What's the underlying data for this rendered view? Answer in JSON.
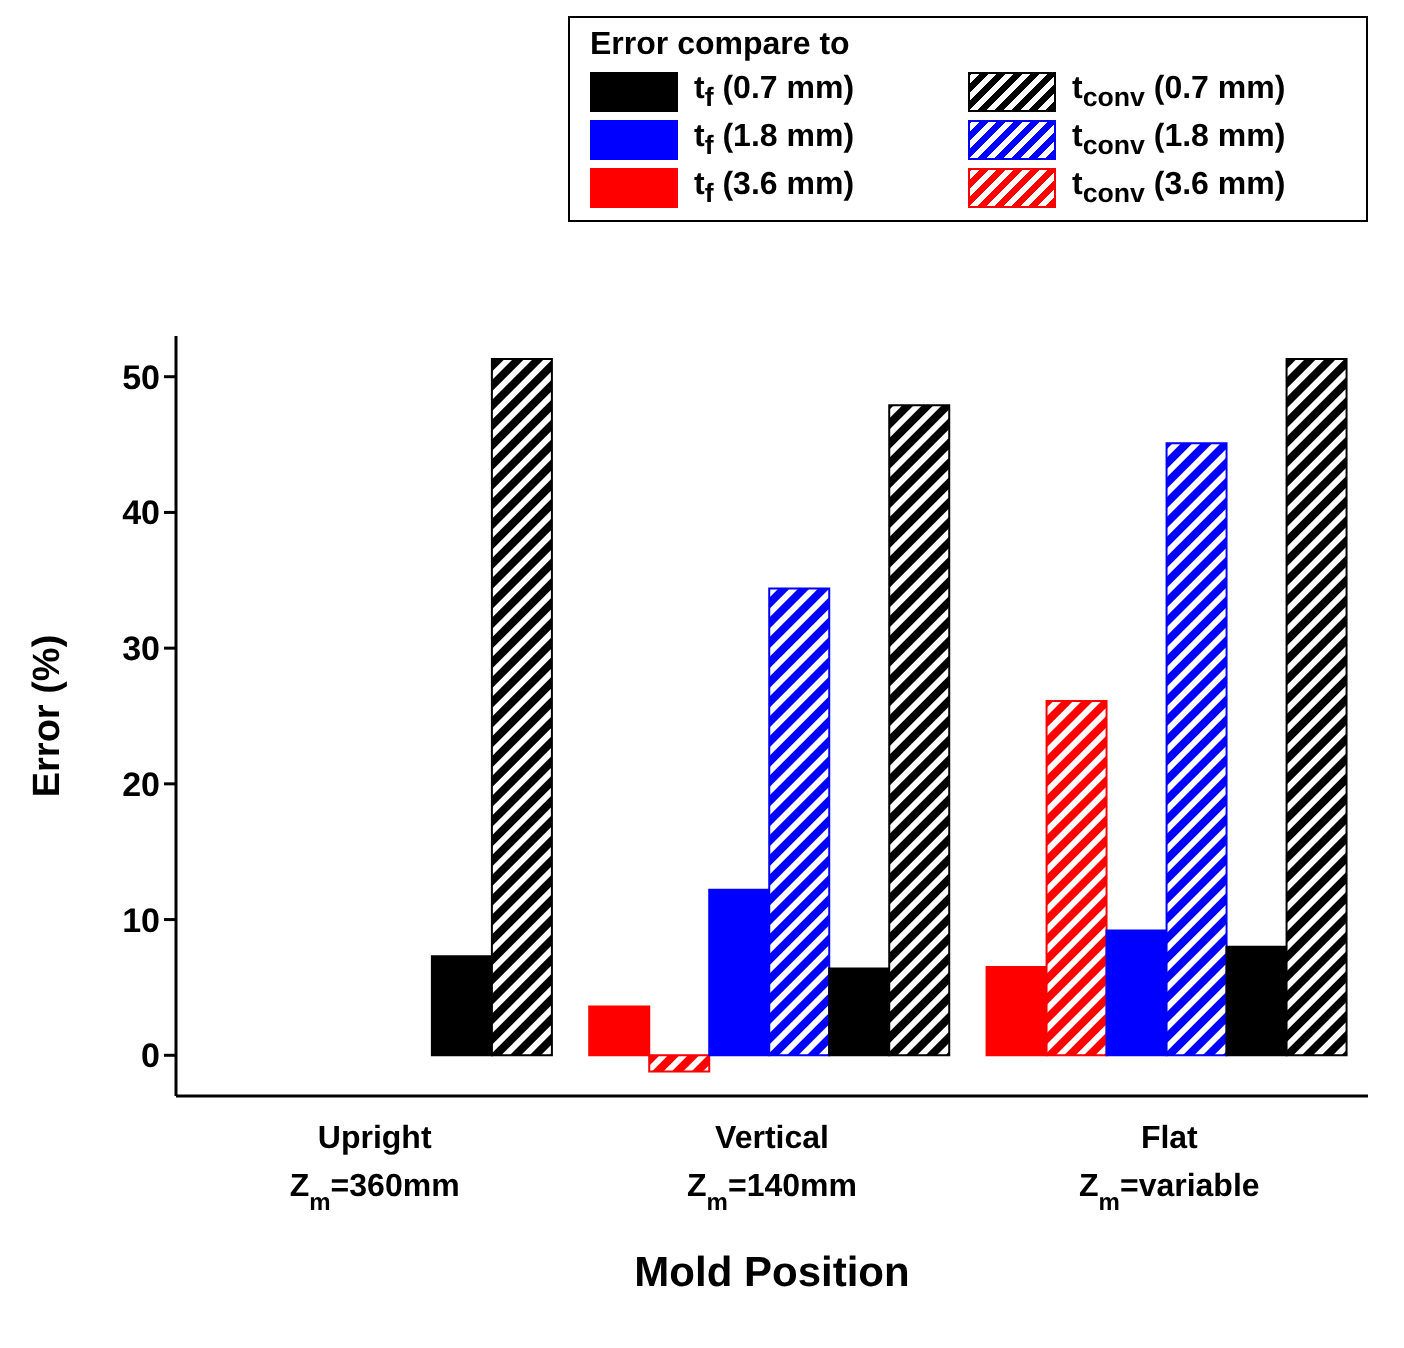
{
  "chart_data": {
    "type": "bar",
    "xlabel": "Mold Position",
    "ylabel": "Error (%)",
    "legend_title": "Error compare to",
    "categories": [
      "Upright Z$_{m}$=360mm",
      "Vertical Z$_{m}$=140mm",
      "Flat Z$_{m}$=variable"
    ],
    "series": [
      {
        "name": "t$_{f}$ (3.6 mm)",
        "color": "#ff0000",
        "values": [
          null,
          3.6,
          6.5
        ]
      },
      {
        "name": "t$_{conv}$ (3.6 mm)",
        "color": "#ff0000",
        "values": [
          null,
          -1.2,
          26.1
        ]
      },
      {
        "name": "t$_{f}$ (1.8 mm)",
        "color": "#0000ff",
        "values": [
          null,
          12.2,
          9.2
        ]
      },
      {
        "name": "t$_{conv}$ (1.8 mm)",
        "color": "#0000ff",
        "values": [
          null,
          34.4,
          45.1
        ]
      },
      {
        "name": "t$_{f}$ (0.7 mm)",
        "color": "#000000",
        "values": [
          7.3,
          6.4,
          8.0
        ]
      },
      {
        "name": "t$_{conv}$ (0.7 mm)",
        "color": "#000000",
        "values": [
          51.3,
          47.9,
          51.3
        ]
      }
    ],
    "ylim": [
      -3,
      53
    ],
    "yticks": [
      0,
      10,
      20,
      30,
      40,
      50
    ],
    "legend": "top right",
    "grid": false
  }
}
